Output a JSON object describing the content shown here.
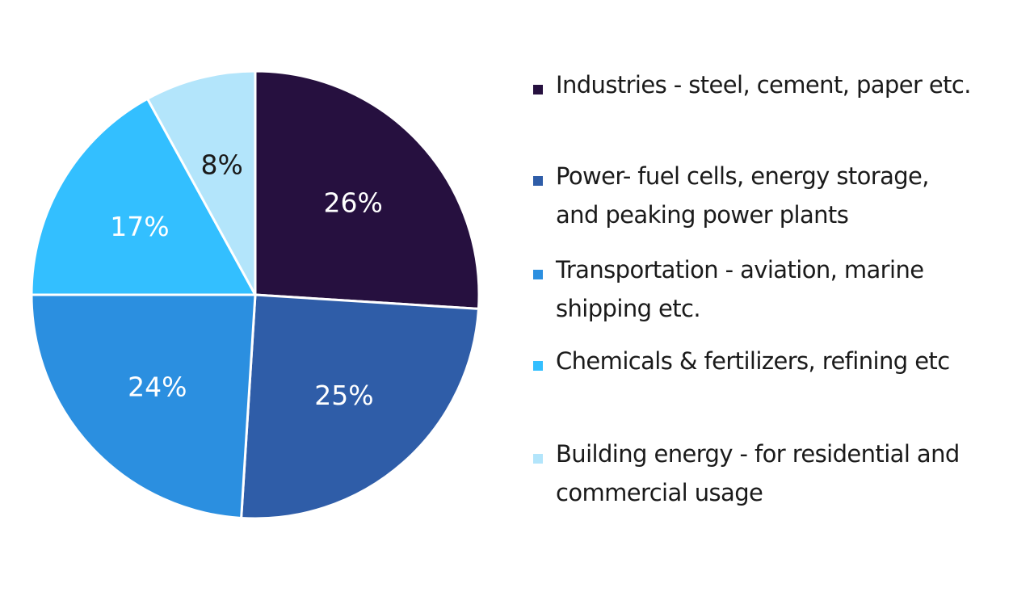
{
  "chart_data": {
    "type": "pie",
    "title": "",
    "start_angle_deg": 0,
    "direction": "clockwise",
    "slices": [
      {
        "label": "Industries - steel, cement, paper etc.",
        "value": 26,
        "display": "26%",
        "color": "#26103F",
        "label_color": "#ffffff"
      },
      {
        "label": "Power- fuel cells, energy storage, and peaking power plants",
        "value": 25,
        "display": "25%",
        "color": "#2F5DA8",
        "label_color": "#ffffff"
      },
      {
        "label": "Transportation - aviation, marine shipping etc.",
        "value": 24,
        "display": "24%",
        "color": "#2B8FE0",
        "label_color": "#ffffff"
      },
      {
        "label": "Chemicals & fertilizers, refining etc",
        "value": 17,
        "display": "17%",
        "color": "#33BFFF",
        "label_color": "#ffffff"
      },
      {
        "label": "Building energy - for residential and commercial usage",
        "value": 8,
        "display": "8%",
        "color": "#B3E5FB",
        "label_color": "#1a1a1a"
      }
    ],
    "legend": {
      "placement": "right",
      "entries": [
        {
          "text": "Industries - steel, cement, paper etc."
        },
        {
          "text": "Power- fuel cells, energy storage,\nand peaking power plants"
        },
        {
          "text": "Transportation - aviation, marine\nshipping etc."
        },
        {
          "text": "Chemicals & fertilizers, refining etc"
        },
        {
          "text": "Building energy - for residential and\ncommercial usage"
        }
      ]
    }
  }
}
